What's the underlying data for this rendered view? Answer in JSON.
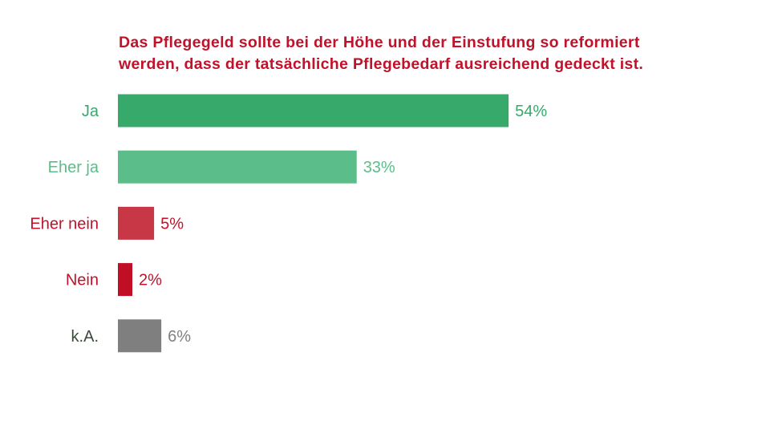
{
  "chart_data": {
    "type": "bar",
    "orientation": "horizontal",
    "title": {
      "line1": "Das Pflegegeld sollte bei der Höhe und der Einstufung so reformiert",
      "line2": "werden, dass der tatsächliche Pflegebedarf ausreichend gedeckt ist."
    },
    "title_color": "#c0122a",
    "categories": [
      "Ja",
      "Eher ja",
      "Eher nein",
      "Nein",
      "k.A."
    ],
    "values": [
      54,
      33,
      5,
      2,
      6
    ],
    "value_labels": [
      "54%",
      "33%",
      "5%",
      "2%",
      "6%"
    ],
    "bar_colors": [
      "#36a96b",
      "#5bbd89",
      "#c83745",
      "#c00f24",
      "#7f7f7f"
    ],
    "category_label_colors": [
      "#36a96b",
      "#5bbd89",
      "#c0122a",
      "#c0122a",
      "#3b4a3b"
    ],
    "value_label_colors": [
      "#36a96b",
      "#5bbd89",
      "#c0122a",
      "#c0122a",
      "#808080"
    ],
    "xlabel": "",
    "ylabel": "",
    "xlim": [
      0,
      100
    ],
    "grid": false,
    "legend": "none"
  }
}
